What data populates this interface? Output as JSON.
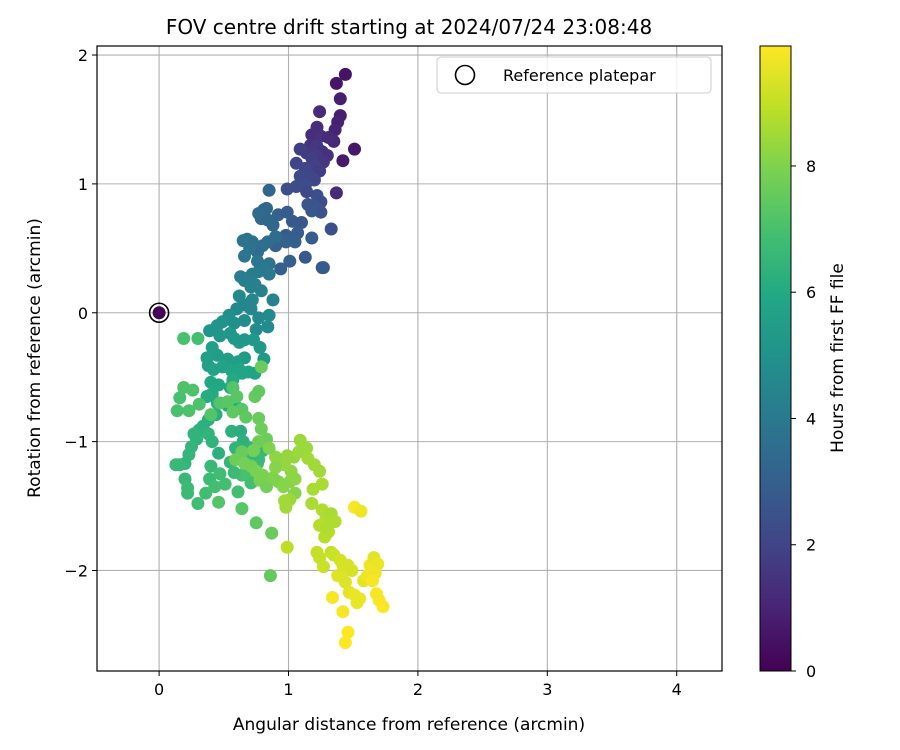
{
  "chart_data": {
    "type": "scatter",
    "title": "FOV centre drift starting at 2024/07/24 23:08:48",
    "xlabel": "Angular distance from reference (arcmin)",
    "ylabel": "Rotation from reference (arcmin)",
    "xlim": [
      -0.48,
      4.35
    ],
    "ylim": [
      -2.78,
      2.07
    ],
    "xticks": [
      "0",
      "1",
      "2",
      "3",
      "4"
    ],
    "xtick_values": [
      0,
      1,
      2,
      3,
      4
    ],
    "yticks": [
      "2",
      "1",
      "0",
      "−1",
      "−2"
    ],
    "ytick_values": [
      2,
      1,
      0,
      -1,
      -2
    ],
    "grid": true,
    "legend": {
      "position": "top-right",
      "label": "Reference platepar"
    },
    "reference_point": {
      "x": 0,
      "y": 0,
      "hours": 0.1
    },
    "colorbar": {
      "label": "Hours from first FF file",
      "colormap": "viridis",
      "range": [
        0,
        9.9
      ],
      "ticks": [
        "0",
        "2",
        "4",
        "6",
        "8"
      ],
      "tick_values": [
        0,
        2,
        4,
        6,
        8
      ]
    },
    "points": [
      [
        1.44,
        1.85,
        0.5
      ],
      [
        1.37,
        1.78,
        0.6
      ],
      [
        1.4,
        1.66,
        0.8
      ],
      [
        1.51,
        1.27,
        0.6
      ],
      [
        1.42,
        1.18,
        0.7
      ],
      [
        1.4,
        1.53,
        0.8
      ],
      [
        1.38,
        1.48,
        0.9
      ],
      [
        1.36,
        1.42,
        1.0
      ],
      [
        1.35,
        1.33,
        1.1
      ],
      [
        1.37,
        0.93,
        1.2
      ],
      [
        1.24,
        1.56,
        1.2
      ],
      [
        1.22,
        1.44,
        1.3
      ],
      [
        1.18,
        1.38,
        1.3
      ],
      [
        1.25,
        1.37,
        1.4
      ],
      [
        1.31,
        1.36,
        1.2
      ],
      [
        1.17,
        1.3,
        1.5
      ],
      [
        1.22,
        1.29,
        1.6
      ],
      [
        1.26,
        1.25,
        1.5
      ],
      [
        1.3,
        1.22,
        1.4
      ],
      [
        1.21,
        1.22,
        1.7
      ],
      [
        1.14,
        1.24,
        1.7
      ],
      [
        1.18,
        1.2,
        1.8
      ],
      [
        1.09,
        1.27,
        1.8
      ],
      [
        1.27,
        1.17,
        1.6
      ],
      [
        1.2,
        1.14,
        1.9
      ],
      [
        1.06,
        1.16,
        2.0
      ],
      [
        1.13,
        1.12,
        2.0
      ],
      [
        1.24,
        1.1,
        1.8
      ],
      [
        1.16,
        1.06,
        2.1
      ],
      [
        1.09,
        1.06,
        2.2
      ],
      [
        1.2,
        1.03,
        2.1
      ],
      [
        1.13,
        0.99,
        2.3
      ],
      [
        1.06,
        0.98,
        2.3
      ],
      [
        0.99,
        0.96,
        2.4
      ],
      [
        1.14,
        0.94,
        2.2
      ],
      [
        1.22,
        0.91,
        2.4
      ],
      [
        1.25,
        0.86,
        2.3
      ],
      [
        1.2,
        0.83,
        2.6
      ],
      [
        1.15,
        0.84,
        2.6
      ],
      [
        1.25,
        0.78,
        2.5
      ],
      [
        1.18,
        0.79,
        2.7
      ],
      [
        1.33,
        0.65,
        2.4
      ],
      [
        1.1,
        0.7,
        2.7
      ],
      [
        1.03,
        0.71,
        2.8
      ],
      [
        1.07,
        0.62,
        2.9
      ],
      [
        0.98,
        0.6,
        2.9
      ],
      [
        1.05,
        0.55,
        3.0
      ],
      [
        0.98,
        0.55,
        3.1
      ],
      [
        1.18,
        0.58,
        2.9
      ],
      [
        1.26,
        0.35,
        2.9
      ],
      [
        1.27,
        0.35,
        2.8
      ],
      [
        1.13,
        0.43,
        2.8
      ],
      [
        1.01,
        0.4,
        3.0
      ],
      [
        0.94,
        0.34,
        3.0
      ],
      [
        0.93,
        0.57,
        3.1
      ],
      [
        0.9,
        0.52,
        3.1
      ],
      [
        0.92,
        0.76,
        3.1
      ],
      [
        0.99,
        0.78,
        2.9
      ],
      [
        0.85,
        0.95,
        3.2
      ],
      [
        0.83,
        0.81,
        3.3
      ],
      [
        0.81,
        0.8,
        3.3
      ],
      [
        0.79,
        0.73,
        3.4
      ],
      [
        0.77,
        0.77,
        3.4
      ],
      [
        0.84,
        0.72,
        3.3
      ],
      [
        0.88,
        0.68,
        3.3
      ],
      [
        0.9,
        0.59,
        3.5
      ],
      [
        0.84,
        0.55,
        3.5
      ],
      [
        0.8,
        0.52,
        3.6
      ],
      [
        0.76,
        0.47,
        3.5
      ],
      [
        0.72,
        0.55,
        3.7
      ],
      [
        0.68,
        0.57,
        3.7
      ],
      [
        0.65,
        0.56,
        3.8
      ],
      [
        0.7,
        0.5,
        3.8
      ],
      [
        0.66,
        0.44,
        3.9
      ],
      [
        0.76,
        0.4,
        3.9
      ],
      [
        0.85,
        0.38,
        3.8
      ],
      [
        0.85,
        0.3,
        4.0
      ],
      [
        0.81,
        0.34,
        4.0
      ],
      [
        0.77,
        0.32,
        4.0
      ],
      [
        0.72,
        0.3,
        4.1
      ],
      [
        0.69,
        0.27,
        4.1
      ],
      [
        0.66,
        0.25,
        4.2
      ],
      [
        0.63,
        0.28,
        4.2
      ],
      [
        0.71,
        0.2,
        4.3
      ],
      [
        0.74,
        0.22,
        4.3
      ],
      [
        0.79,
        0.17,
        4.3
      ],
      [
        0.88,
        0.1,
        4.4
      ],
      [
        0.72,
        0.1,
        4.5
      ],
      [
        0.66,
        0.06,
        4.5
      ],
      [
        0.62,
        0.13,
        4.6
      ],
      [
        0.6,
        0.03,
        4.6
      ],
      [
        0.71,
        0.03,
        4.5
      ],
      [
        0.77,
        -0.04,
        4.6
      ],
      [
        0.85,
        -0.02,
        4.7
      ],
      [
        0.84,
        -0.11,
        4.7
      ],
      [
        0.75,
        -0.13,
        4.8
      ],
      [
        0.66,
        -0.06,
        4.8
      ],
      [
        0.58,
        -0.08,
        4.9
      ],
      [
        0.54,
        -0.02,
        4.9
      ],
      [
        0.49,
        -0.07,
        5.0
      ],
      [
        0.45,
        -0.1,
        5.0
      ],
      [
        0.43,
        -0.13,
        5.1
      ],
      [
        0.39,
        -0.14,
        5.1
      ],
      [
        0.47,
        -0.18,
        5.2
      ],
      [
        0.55,
        -0.16,
        5.2
      ],
      [
        0.58,
        -0.2,
        5.3
      ],
      [
        0.62,
        -0.23,
        5.3
      ],
      [
        0.66,
        -0.21,
        5.2
      ],
      [
        0.73,
        -0.21,
        5.3
      ],
      [
        0.78,
        -0.27,
        5.3
      ],
      [
        0.81,
        -0.36,
        5.3
      ],
      [
        0.66,
        -0.35,
        5.4
      ],
      [
        0.61,
        -0.38,
        5.5
      ],
      [
        0.53,
        -0.36,
        5.5
      ],
      [
        0.45,
        -0.33,
        5.5
      ],
      [
        0.41,
        -0.27,
        5.6
      ],
      [
        0.37,
        -0.35,
        5.6
      ],
      [
        0.38,
        -0.41,
        5.6
      ],
      [
        0.42,
        -0.44,
        5.7
      ],
      [
        0.49,
        -0.42,
        5.7
      ],
      [
        0.56,
        -0.45,
        5.8
      ],
      [
        0.62,
        -0.44,
        5.8
      ],
      [
        0.64,
        -0.47,
        5.8
      ],
      [
        0.69,
        -0.46,
        5.8
      ],
      [
        0.74,
        -0.47,
        5.7
      ],
      [
        0.4,
        -0.54,
        5.9
      ],
      [
        0.46,
        -0.56,
        5.9
      ],
      [
        0.55,
        -0.58,
        5.9
      ],
      [
        0.57,
        -0.52,
        6.0
      ],
      [
        0.41,
        -0.63,
        6.0
      ],
      [
        0.37,
        -0.65,
        6.1
      ],
      [
        0.45,
        -0.7,
        6.1
      ],
      [
        0.53,
        -0.72,
        6.1
      ],
      [
        0.61,
        -0.74,
        6.2
      ],
      [
        0.44,
        -0.79,
        6.2
      ],
      [
        0.38,
        -0.83,
        6.2
      ],
      [
        0.34,
        -0.88,
        6.3
      ],
      [
        0.31,
        -0.91,
        6.3
      ],
      [
        0.27,
        -0.94,
        6.4
      ],
      [
        0.38,
        -0.94,
        6.4
      ],
      [
        0.29,
        -0.98,
        6.4
      ],
      [
        0.25,
        -1.04,
        6.5
      ],
      [
        0.23,
        -1.1,
        6.5
      ],
      [
        0.2,
        -1.17,
        6.5
      ],
      [
        0.16,
        -1.18,
        6.6
      ],
      [
        0.13,
        -1.18,
        6.6
      ],
      [
        0.2,
        -1.29,
        6.6
      ],
      [
        0.22,
        -1.36,
        6.7
      ],
      [
        0.22,
        -1.4,
        6.7
      ],
      [
        0.3,
        -1.48,
        6.8
      ],
      [
        0.36,
        -1.4,
        6.8
      ],
      [
        0.39,
        -1.29,
        6.7
      ],
      [
        0.43,
        -1.35,
        6.9
      ],
      [
        0.4,
        -1.19,
        6.6
      ],
      [
        0.46,
        -1.09,
        6.3
      ],
      [
        0.41,
        -1.0,
        6.4
      ],
      [
        0.56,
        -0.92,
        6.3
      ],
      [
        0.63,
        -0.92,
        6.2
      ],
      [
        0.65,
        -1.0,
        6.3
      ],
      [
        0.7,
        -1.05,
        6.4
      ],
      [
        0.59,
        -1.05,
        6.4
      ],
      [
        0.55,
        -1.16,
        6.5
      ],
      [
        0.47,
        -1.25,
        6.8
      ],
      [
        0.51,
        -1.33,
        6.9
      ],
      [
        0.61,
        -1.39,
        6.9
      ],
      [
        0.64,
        -1.26,
        6.9
      ],
      [
        0.71,
        -1.32,
        6.8
      ],
      [
        0.76,
        -1.17,
        6.8
      ],
      [
        0.8,
        -1.07,
        6.6
      ],
      [
        0.77,
        -1.14,
        6.7
      ],
      [
        0.72,
        -1.1,
        6.6
      ],
      [
        0.66,
        -1.25,
        7.0
      ],
      [
        0.74,
        -1.3,
        6.9
      ],
      [
        0.58,
        -1.24,
        6.7
      ],
      [
        0.46,
        -1.47,
        7.2
      ],
      [
        0.64,
        -1.52,
        7.3
      ],
      [
        0.75,
        -1.63,
        7.4
      ],
      [
        0.86,
        -2.04,
        7.5
      ],
      [
        0.87,
        -1.71,
        7.6
      ],
      [
        0.19,
        -0.2,
        7.0
      ],
      [
        0.3,
        -0.2,
        6.9
      ],
      [
        0.16,
        -0.66,
        7.0
      ],
      [
        0.19,
        -0.58,
        7.1
      ],
      [
        0.26,
        -0.6,
        7.1
      ],
      [
        0.14,
        -0.76,
        7.0
      ],
      [
        0.23,
        -0.76,
        7.1
      ],
      [
        0.31,
        -0.71,
        7.1
      ],
      [
        0.4,
        -0.79,
        7.2
      ],
      [
        0.47,
        -0.7,
        7.2
      ],
      [
        0.53,
        -0.69,
        7.3
      ],
      [
        0.57,
        -0.58,
        7.2
      ],
      [
        0.6,
        -0.65,
        7.3
      ],
      [
        0.64,
        -0.75,
        7.3
      ],
      [
        0.57,
        -0.77,
        7.4
      ],
      [
        0.67,
        -0.81,
        7.4
      ],
      [
        0.74,
        -0.65,
        7.5
      ],
      [
        0.77,
        -0.61,
        7.4
      ],
      [
        0.79,
        -0.42,
        7.6
      ],
      [
        0.77,
        -0.82,
        7.6
      ],
      [
        0.79,
        -0.9,
        7.7
      ],
      [
        0.83,
        -0.98,
        7.7
      ],
      [
        0.77,
        -1.0,
        7.7
      ],
      [
        0.73,
        -1.07,
        7.8
      ],
      [
        0.64,
        -1.08,
        7.6
      ],
      [
        0.59,
        -1.14,
        7.7
      ],
      [
        0.66,
        -1.17,
        7.8
      ],
      [
        0.71,
        -1.19,
        7.8
      ],
      [
        0.75,
        -1.23,
        7.9
      ],
      [
        0.78,
        -1.3,
        7.9
      ],
      [
        0.83,
        -1.35,
        7.8
      ],
      [
        0.88,
        -1.28,
        8.0
      ],
      [
        0.92,
        -1.31,
        8.0
      ],
      [
        0.96,
        -1.35,
        8.1
      ],
      [
        1.01,
        -1.31,
        8.1
      ],
      [
        1.05,
        -1.4,
        8.1
      ],
      [
        1.05,
        -1.29,
        8.2
      ],
      [
        1.02,
        -1.23,
        8.2
      ],
      [
        0.97,
        -1.18,
        8.3
      ],
      [
        0.99,
        -1.11,
        8.3
      ],
      [
        1.04,
        -1.12,
        8.3
      ],
      [
        1.08,
        -1.08,
        8.4
      ],
      [
        1.09,
        -0.99,
        8.4
      ],
      [
        1.14,
        -1.05,
        8.4
      ],
      [
        1.01,
        -1.45,
        8.4
      ],
      [
        0.97,
        -1.46,
        8.5
      ],
      [
        0.98,
        -1.51,
        8.5
      ],
      [
        1.15,
        -1.13,
        8.5
      ],
      [
        1.2,
        -1.18,
        8.5
      ],
      [
        1.24,
        -1.23,
        8.5
      ],
      [
        1.26,
        -1.33,
        8.6
      ],
      [
        1.19,
        -1.37,
        8.6
      ],
      [
        1.18,
        -1.48,
        8.6
      ],
      [
        1.26,
        -1.53,
        8.7
      ],
      [
        1.29,
        -1.59,
        8.7
      ],
      [
        1.24,
        -1.65,
        8.8
      ],
      [
        1.31,
        -1.7,
        8.8
      ],
      [
        1.28,
        -1.74,
        8.8
      ],
      [
        1.33,
        -1.86,
        9.0
      ],
      [
        1.22,
        -1.86,
        9.0
      ],
      [
        1.24,
        -1.9,
        9.0
      ],
      [
        1.27,
        -1.97,
        9.1
      ],
      [
        1.35,
        -1.88,
        9.1
      ],
      [
        1.33,
        -1.56,
        8.6
      ],
      [
        1.36,
        -1.62,
        8.7
      ],
      [
        1.29,
        -1.67,
        8.7
      ],
      [
        0.99,
        -1.82,
        8.9
      ],
      [
        1.4,
        -1.92,
        9.2
      ],
      [
        1.42,
        -1.96,
        9.3
      ],
      [
        1.46,
        -1.96,
        9.3
      ],
      [
        1.49,
        -2.0,
        9.3
      ],
      [
        1.41,
        -2.05,
        9.4
      ],
      [
        1.44,
        -2.09,
        9.4
      ],
      [
        1.38,
        -2.04,
        9.4
      ],
      [
        1.47,
        -2.17,
        9.5
      ],
      [
        1.51,
        -2.19,
        9.6
      ],
      [
        1.53,
        -2.25,
        9.6
      ],
      [
        1.55,
        -2.22,
        9.6
      ],
      [
        1.58,
        -2.08,
        9.5
      ],
      [
        1.61,
        -2.04,
        9.7
      ],
      [
        1.63,
        -1.96,
        9.7
      ],
      [
        1.66,
        -1.9,
        9.5
      ],
      [
        1.69,
        -1.95,
        9.6
      ],
      [
        1.67,
        -2.02,
        9.7
      ],
      [
        1.65,
        -2.08,
        9.8
      ],
      [
        1.68,
        -2.18,
        9.8
      ],
      [
        1.7,
        -2.23,
        9.8
      ],
      [
        1.73,
        -2.28,
        9.9
      ],
      [
        1.34,
        -2.21,
        9.8
      ],
      [
        1.42,
        -2.32,
        9.8
      ],
      [
        1.46,
        -2.48,
        9.9
      ],
      [
        1.44,
        -2.56,
        9.9
      ],
      [
        1.51,
        -1.51,
        9.8
      ],
      [
        1.56,
        -1.54,
        9.7
      ],
      [
        0.9,
        -1.12,
        8.2
      ],
      [
        0.85,
        -1.05,
        8.0
      ],
      [
        0.9,
        -1.2,
        8.1
      ],
      [
        0.8,
        -1.26,
        7.9
      ]
    ]
  }
}
